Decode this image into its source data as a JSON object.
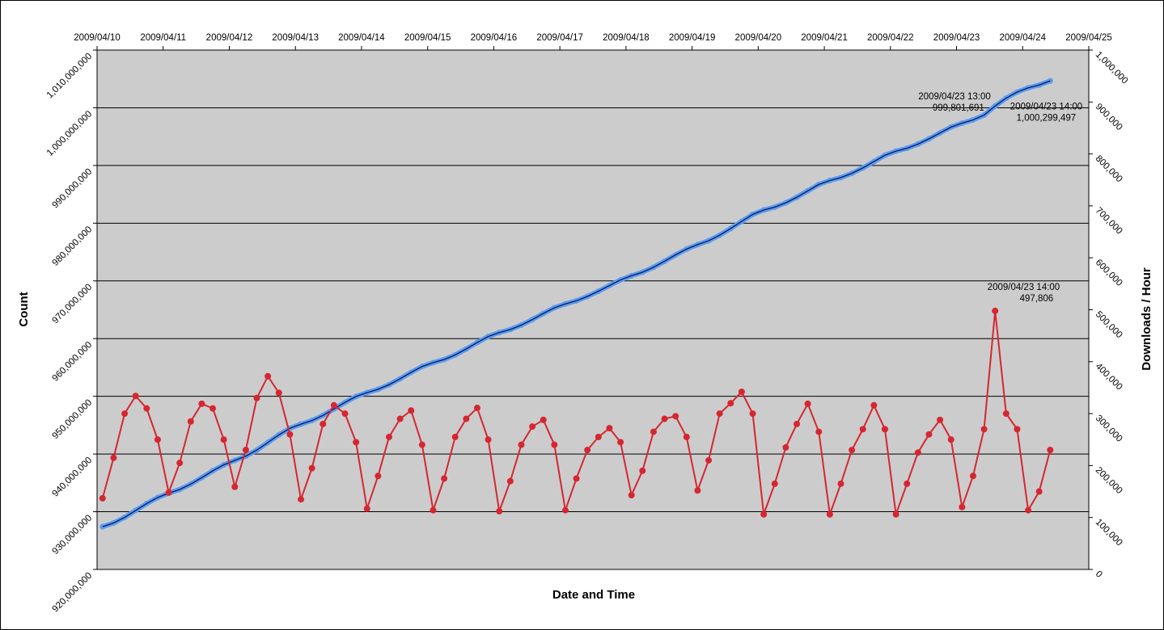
{
  "chart_data": {
    "type": "line",
    "xlabel": "Date and Time",
    "ylabel": "Count",
    "y2label": "Downloads / Hour",
    "x": [
      "2009/04/10 02:00",
      "2009/04/10 06:00",
      "2009/04/10 10:00",
      "2009/04/10 14:00",
      "2009/04/10 18:00",
      "2009/04/10 22:00",
      "2009/04/11 02:00",
      "2009/04/11 06:00",
      "2009/04/11 10:00",
      "2009/04/11 14:00",
      "2009/04/11 18:00",
      "2009/04/11 22:00",
      "2009/04/12 02:00",
      "2009/04/12 06:00",
      "2009/04/12 10:00",
      "2009/04/12 14:00",
      "2009/04/12 18:00",
      "2009/04/12 22:00",
      "2009/04/13 02:00",
      "2009/04/13 06:00",
      "2009/04/13 10:00",
      "2009/04/13 14:00",
      "2009/04/13 18:00",
      "2009/04/13 22:00",
      "2009/04/14 02:00",
      "2009/04/14 06:00",
      "2009/04/14 10:00",
      "2009/04/14 14:00",
      "2009/04/14 18:00",
      "2009/04/14 22:00",
      "2009/04/15 02:00",
      "2009/04/15 06:00",
      "2009/04/15 10:00",
      "2009/04/15 14:00",
      "2009/04/15 18:00",
      "2009/04/15 22:00",
      "2009/04/16 02:00",
      "2009/04/16 06:00",
      "2009/04/16 10:00",
      "2009/04/16 14:00",
      "2009/04/16 18:00",
      "2009/04/16 22:00",
      "2009/04/17 02:00",
      "2009/04/17 06:00",
      "2009/04/17 10:00",
      "2009/04/17 14:00",
      "2009/04/17 18:00",
      "2009/04/17 22:00",
      "2009/04/18 02:00",
      "2009/04/18 06:00",
      "2009/04/18 10:00",
      "2009/04/18 14:00",
      "2009/04/18 18:00",
      "2009/04/18 22:00",
      "2009/04/19 02:00",
      "2009/04/19 06:00",
      "2009/04/19 10:00",
      "2009/04/19 14:00",
      "2009/04/19 18:00",
      "2009/04/19 22:00",
      "2009/04/20 02:00",
      "2009/04/20 06:00",
      "2009/04/20 10:00",
      "2009/04/20 14:00",
      "2009/04/20 18:00",
      "2009/04/20 22:00",
      "2009/04/21 02:00",
      "2009/04/21 06:00",
      "2009/04/21 10:00",
      "2009/04/21 14:00",
      "2009/04/21 18:00",
      "2009/04/21 22:00",
      "2009/04/22 02:00",
      "2009/04/22 06:00",
      "2009/04/22 10:00",
      "2009/04/22 14:00",
      "2009/04/22 18:00",
      "2009/04/22 22:00",
      "2009/04/23 02:00",
      "2009/04/23 06:00",
      "2009/04/23 10:00",
      "2009/04/23 14:00",
      "2009/04/23 18:00",
      "2009/04/23 22:00",
      "2009/04/24 02:00",
      "2009/04/24 06:00",
      "2009/04/24 10:00"
    ],
    "series": [
      {
        "color": "#5b9bf0",
        "axis": "y",
        "values": [
          927400000,
          928050000,
          929020000,
          930210000,
          931410000,
          932460000,
          933210000,
          933860000,
          934780000,
          935910000,
          937090000,
          938130000,
          938900000,
          939630000,
          940680000,
          941990000,
          943320000,
          944450000,
          945180000,
          945800000,
          946690000,
          947800000,
          948950000,
          949970000,
          950640000,
          951210000,
          952020000,
          953040000,
          954150000,
          955170000,
          955830000,
          956380000,
          957180000,
          958200000,
          959320000,
          960370000,
          961050000,
          961570000,
          962340000,
          963300000,
          964360000,
          965340000,
          966010000,
          966550000,
          967310000,
          968210000,
          969190000,
          970170000,
          970890000,
          971510000,
          972360000,
          973400000,
          974500000,
          975520000,
          976280000,
          976960000,
          977920000,
          979080000,
          980310000,
          981520000,
          982280000,
          982780000,
          983530000,
          984490000,
          985610000,
          986710000,
          987400000,
          987900000,
          988640000,
          989580000,
          990670000,
          991770000,
          992480000,
          992980000,
          993710000,
          994620000,
          995650000,
          996650000,
          997340000,
          997900000,
          998740000,
          1000299497,
          1001670000,
          1002730000,
          1003450000,
          1003950000,
          1004660000
        ]
      },
      {
        "color": "#d62630",
        "axis": "y2",
        "values": [
          137000,
          215000,
          300000,
          334000,
          310000,
          250000,
          148000,
          205000,
          285000,
          319000,
          310000,
          250000,
          159000,
          230000,
          330000,
          372000,
          340000,
          260000,
          135000,
          195000,
          280000,
          316000,
          300000,
          245000,
          117000,
          180000,
          255000,
          290000,
          306000,
          240000,
          114000,
          175000,
          255000,
          290000,
          311000,
          250000,
          112000,
          170000,
          240000,
          275000,
          288000,
          240000,
          114000,
          175000,
          230000,
          255000,
          272000,
          245000,
          143000,
          190000,
          265000,
          290000,
          295000,
          255000,
          152000,
          210000,
          300000,
          320000,
          342000,
          300000,
          106000,
          165000,
          235000,
          280000,
          319000,
          265000,
          106000,
          165000,
          230000,
          270000,
          316000,
          270000,
          106000,
          165000,
          225000,
          260000,
          288000,
          250000,
          120000,
          180000,
          270000,
          497806,
          300000,
          270000,
          114000,
          150000,
          230000
        ]
      }
    ],
    "xlim": [
      "2009/04/10",
      "2009/04/25"
    ],
    "xticks": [
      "2009/04/10",
      "2009/04/11",
      "2009/04/12",
      "2009/04/13",
      "2009/04/14",
      "2009/04/15",
      "2009/04/16",
      "2009/04/17",
      "2009/04/18",
      "2009/04/19",
      "2009/04/20",
      "2009/04/21",
      "2009/04/22",
      "2009/04/23",
      "2009/04/24",
      "2009/04/25"
    ],
    "ylim": [
      920000000,
      1010000000
    ],
    "yticks": [
      {
        "value": 920000000,
        "label": "920,000,000"
      },
      {
        "value": 930000000,
        "label": "930,000,000"
      },
      {
        "value": 940000000,
        "label": "940,000,000"
      },
      {
        "value": 950000000,
        "label": "950,000,000"
      },
      {
        "value": 960000000,
        "label": "960,000,000"
      },
      {
        "value": 970000000,
        "label": "970,000,000"
      },
      {
        "value": 980000000,
        "label": "980,000,000"
      },
      {
        "value": 990000000,
        "label": "990,000,000"
      },
      {
        "value": 1000000000,
        "label": "1,000,000,000"
      },
      {
        "value": 1010000000,
        "label": "1,010,000,000"
      }
    ],
    "y2lim": [
      0,
      1000000
    ],
    "y2ticks": [
      0,
      {
        "value": 100000,
        "label": "100,000"
      },
      {
        "value": 200000,
        "label": "200,000"
      },
      {
        "value": 300000,
        "label": "300,000"
      },
      {
        "value": 400000,
        "label": "400,000"
      },
      {
        "value": 500000,
        "label": "500,000"
      },
      {
        "value": 600000,
        "label": "600,000"
      },
      {
        "value": 700000,
        "label": "700,000"
      },
      {
        "value": 800000,
        "label": "800,000"
      },
      {
        "value": 900000,
        "label": "900,000"
      },
      {
        "value": 1000000,
        "label": "1,000,000"
      }
    ],
    "grid": true,
    "annotations": [
      {
        "x": "2009/04/23 13:00",
        "value": 999801691,
        "label": "999,801,691",
        "axis": "y"
      },
      {
        "x": "2009/04/23 14:00",
        "value": 1000299497,
        "label": "1,000,299,497",
        "axis": "y"
      },
      {
        "x": "2009/04/23 14:00",
        "value": 497806,
        "label": "497,806",
        "axis": "y2"
      }
    ]
  }
}
